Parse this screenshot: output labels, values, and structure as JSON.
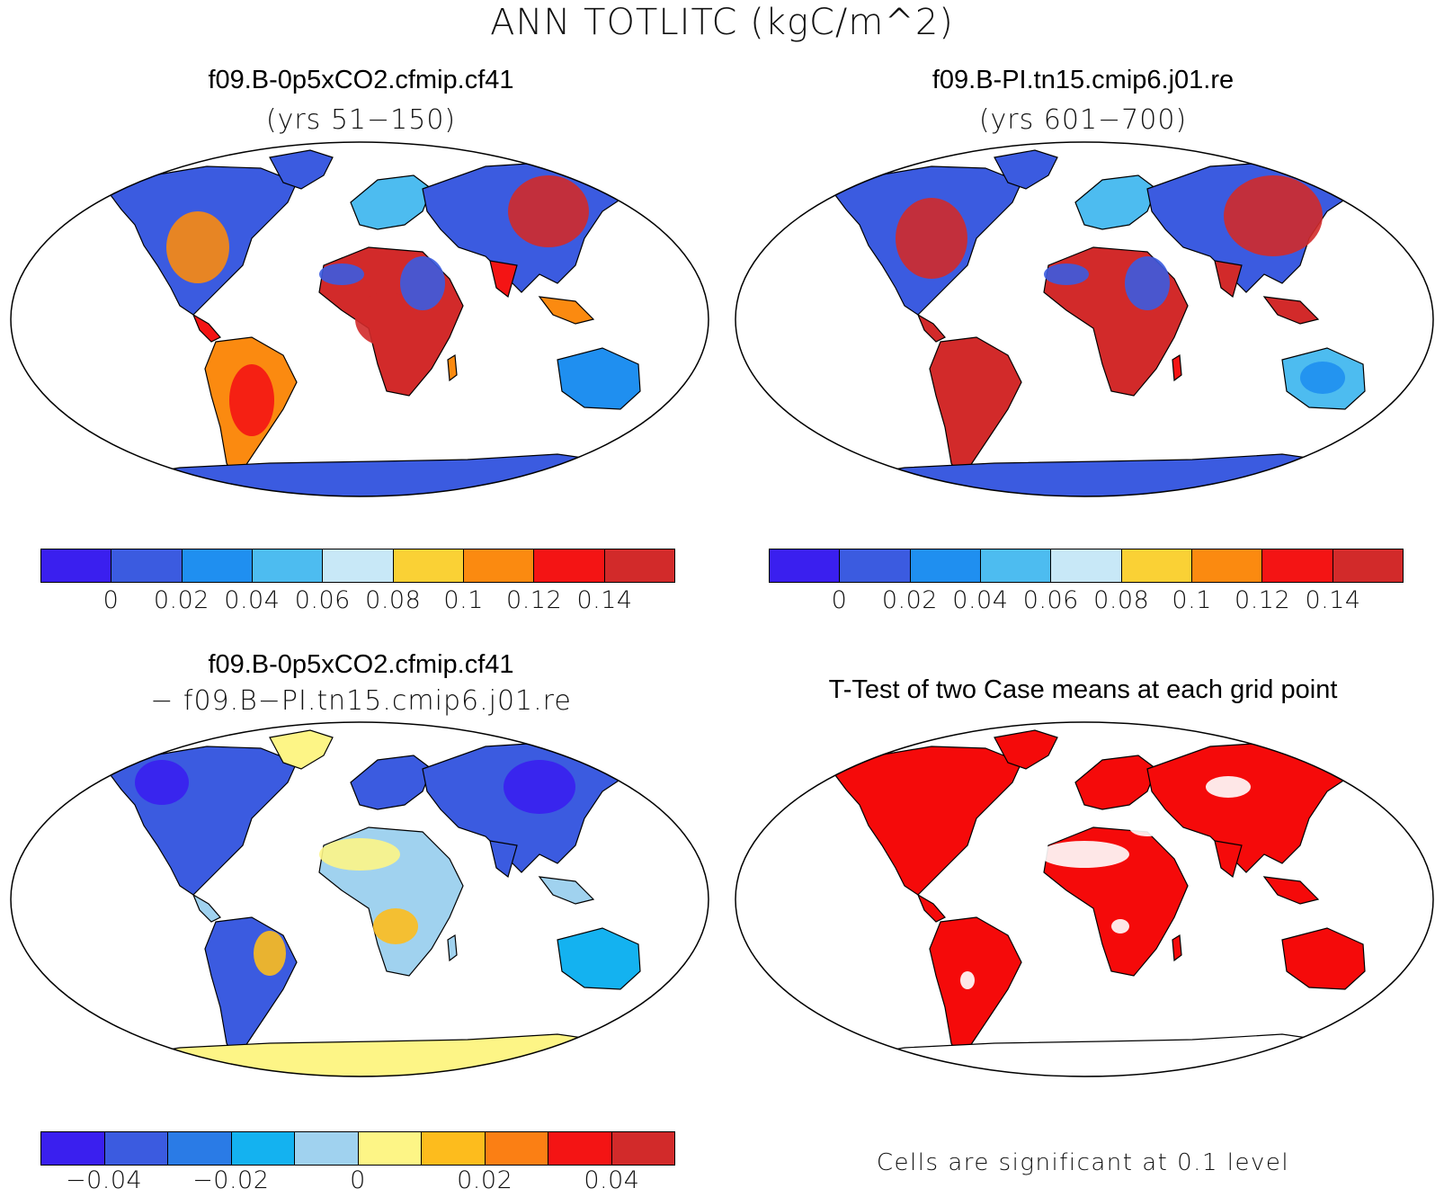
{
  "title": "ANN TOTLITC (kgC/m^2)",
  "panels": [
    {
      "title": "f09.B-0p5xCO2.cfmip.cf41",
      "subtitle": "(yrs 51−150)",
      "colorbar": {
        "colors": [
          "#3a1fef",
          "#3b5be0",
          "#1f8ff0",
          "#4dbcf0",
          "#c8e8f7",
          "#fad135",
          "#fb8a10",
          "#f41414",
          "#d22a2a"
        ],
        "ticks": [
          "0",
          "0.02",
          "0.04",
          "0.06",
          "0.08",
          "0.1",
          "0.12",
          "0.14"
        ]
      }
    },
    {
      "title": "f09.B-PI.tn15.cmip6.j01.re",
      "subtitle": "(yrs 601−700)",
      "colorbar": {
        "colors": [
          "#3a1fef",
          "#3b5be0",
          "#1f8ff0",
          "#4dbcf0",
          "#c8e8f7",
          "#fad135",
          "#fb8a10",
          "#f41414",
          "#d22a2a"
        ],
        "ticks": [
          "0",
          "0.02",
          "0.04",
          "0.06",
          "0.08",
          "0.1",
          "0.12",
          "0.14"
        ]
      }
    },
    {
      "title": "f09.B-0p5xCO2.cfmip.cf41",
      "subtitle": "− f09.B−PI.tn15.cmip6.j01.re",
      "colorbar": {
        "colors": [
          "#3a1fef",
          "#3b5be0",
          "#2a7be6",
          "#14b2f0",
          "#a0d2ef",
          "#fdf586",
          "#fdbc1d",
          "#fb7f14",
          "#f41414",
          "#d22a2a"
        ],
        "ticks": [
          "−0.04",
          "−0.02",
          "0",
          "0.02",
          "0.04"
        ]
      }
    },
    {
      "title": "T-Test of two Case means at each grid point",
      "note": "Cells are significant at 0.1 level"
    }
  ]
}
